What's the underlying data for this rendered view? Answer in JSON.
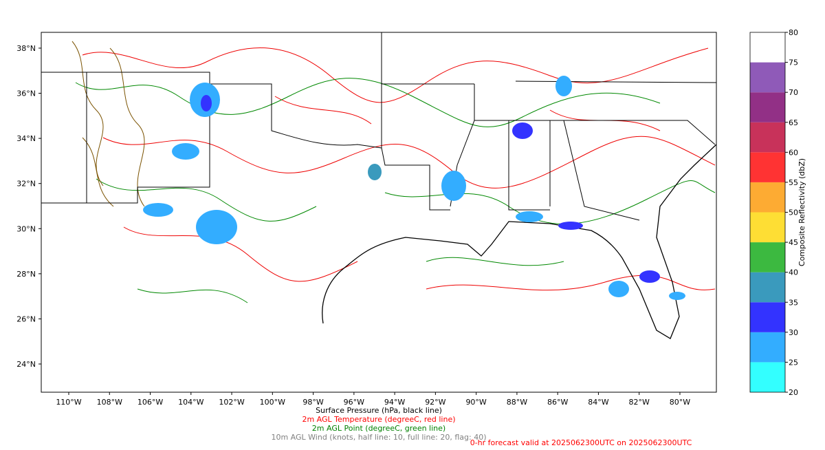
{
  "map": {
    "lon_range": [
      -111.35,
      -78.21
    ],
    "lat_range": [
      22.75,
      38.7
    ],
    "lon_ticks": [
      {
        "value": -110,
        "label": "110°W"
      },
      {
        "value": -108,
        "label": "108°W"
      },
      {
        "value": -106,
        "label": "106°W"
      },
      {
        "value": -104,
        "label": "104°W"
      },
      {
        "value": -102,
        "label": "102°W"
      },
      {
        "value": -100,
        "label": "100°W"
      },
      {
        "value": -98,
        "label": "98°W"
      },
      {
        "value": -96,
        "label": "96°W"
      },
      {
        "value": -94,
        "label": "94°W"
      },
      {
        "value": -92,
        "label": "92°W"
      },
      {
        "value": -90,
        "label": "90°W"
      },
      {
        "value": -88,
        "label": "88°W"
      },
      {
        "value": -86,
        "label": "86°W"
      },
      {
        "value": -84,
        "label": "84°W"
      },
      {
        "value": -82,
        "label": "82°W"
      },
      {
        "value": -80,
        "label": "80°W"
      }
    ],
    "lat_ticks": [
      {
        "value": 24,
        "label": "24°N"
      },
      {
        "value": 26,
        "label": "26°N"
      },
      {
        "value": 28,
        "label": "28°N"
      },
      {
        "value": 30,
        "label": "30°N"
      },
      {
        "value": 32,
        "label": "32°N"
      },
      {
        "value": 34,
        "label": "34°N"
      },
      {
        "value": 36,
        "label": "36°N"
      },
      {
        "value": 38,
        "label": "38°N"
      }
    ],
    "colorbar": {
      "label": "Composite Reflectivity (dbZ)",
      "ticks": [
        20,
        25,
        30,
        35,
        40,
        45,
        50,
        55,
        60,
        65,
        70,
        75,
        80
      ],
      "colors": [
        "#33ffff",
        "#33adff",
        "#3333ff",
        "#3a9abd",
        "#3cb940",
        "#fede34",
        "#fdab33",
        "#ff3333",
        "#c8325a",
        "#923086",
        "#8f5ab8",
        "#ffffff"
      ]
    },
    "captions": [
      {
        "text": "Surface Pressure (hPa, black line)",
        "color": "#000000"
      },
      {
        "text": "2m AGL Temperature (degreeC, red line)",
        "color": "#ff0000"
      },
      {
        "text": "2m AGL Point (degreeC, green line)",
        "color": "#008000"
      },
      {
        "text": "10m AGL Wind (knots, half line: 10, full line: 20, flag: 40)",
        "color": "#808080"
      }
    ],
    "valid_text": {
      "text": "0-hr forecast valid at 2025062300UTC on 2025062300UTC",
      "color": "#ff0000"
    }
  }
}
